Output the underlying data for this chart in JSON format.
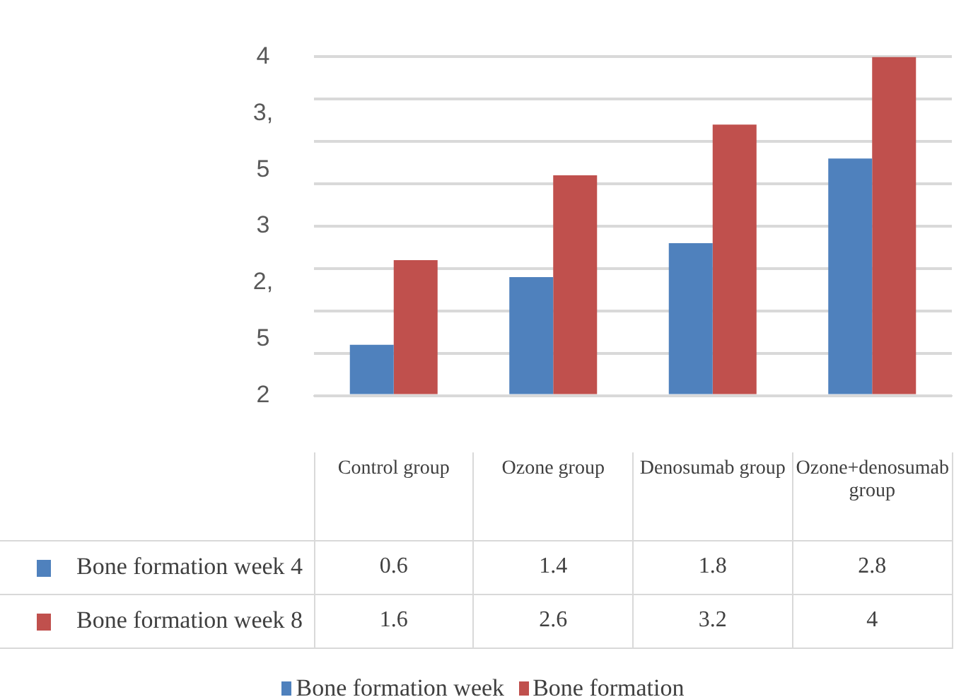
{
  "chart_data": {
    "type": "bar",
    "categories": [
      "Control group",
      "Ozone group",
      "Denosumab group",
      "Ozone+denosumab group"
    ],
    "series": [
      {
        "name": "Bone formation week 4",
        "color": "#4f81bd",
        "values": [
          0.6,
          1.4,
          1.8,
          2.8
        ]
      },
      {
        "name": "Bone formation week 8",
        "color": "#c0504d",
        "values": [
          1.6,
          2.6,
          3.2,
          4
        ]
      }
    ],
    "ylim": [
      0,
      4
    ],
    "grid": "y",
    "data_labels": true,
    "legend": "bottom",
    "annotations": [
      "4",
      "3,",
      "5",
      "3",
      "2,",
      "5",
      "2",
      "Bone formation week",
      "Bone formation"
    ]
  }
}
